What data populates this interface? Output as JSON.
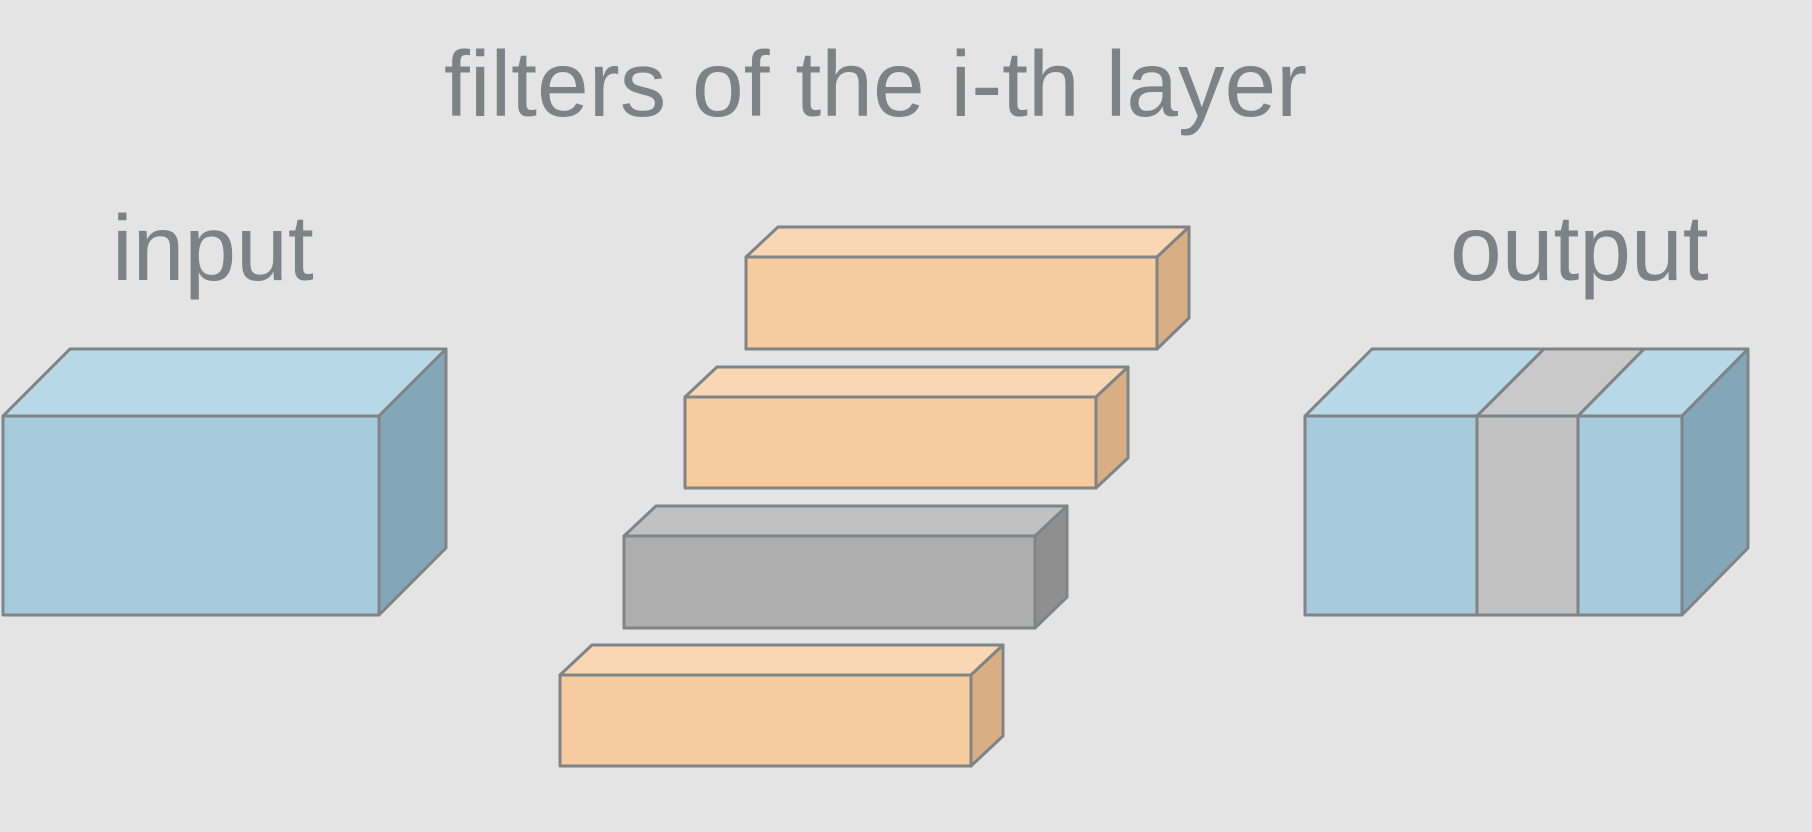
{
  "title": "filters of the i-th layer",
  "input_label": "input",
  "output_label": "output",
  "colors": {
    "background": "#e4e4e4",
    "text": "#7b8387",
    "blue_front": "#a5cbdd",
    "blue_top": "#b7d8e6",
    "blue_side": "#83a7b7",
    "orange_front": "#f6cc9f",
    "orange_top": "#f9d7b5",
    "orange_side": "#d9ae84",
    "gray_front": "#aeaeae",
    "gray_top": "#c1c1c1",
    "gray_side": "#8f8f8f",
    "output_gray_band": "#c2c2c2"
  },
  "filters": [
    {
      "color": "orange"
    },
    {
      "color": "orange"
    },
    {
      "color": "gray"
    },
    {
      "color": "orange"
    }
  ],
  "output_bands": [
    {
      "color": "blue"
    },
    {
      "color": "gray"
    },
    {
      "color": "blue"
    }
  ]
}
